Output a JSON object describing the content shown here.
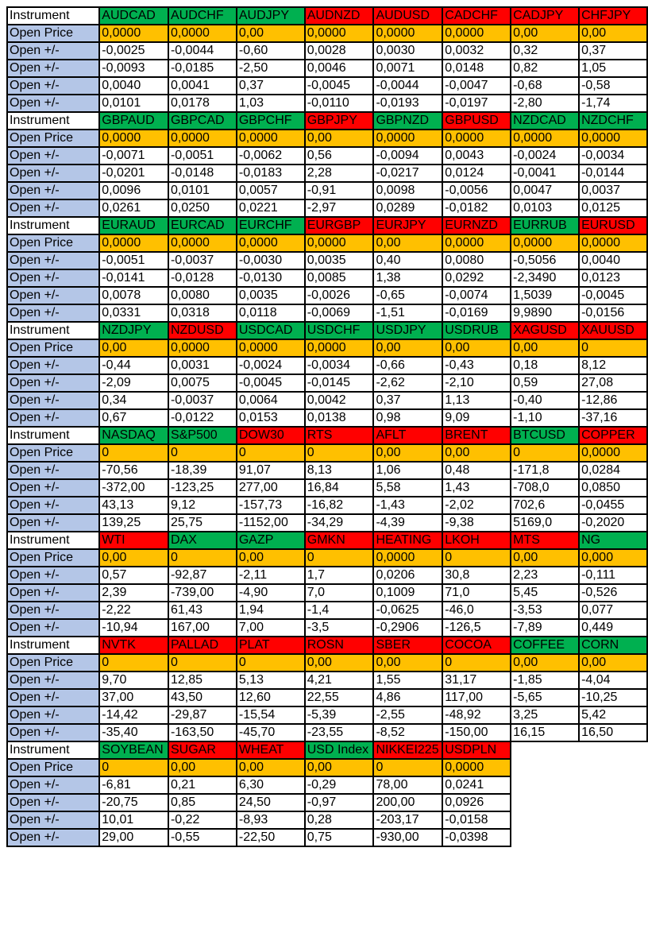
{
  "labels": {
    "instrument": "Instrument",
    "open_price": "Open Price",
    "open_change": "Open +/-"
  },
  "colors": {
    "green": "#00B050",
    "red": "#FF0000",
    "open_price": "#FFC000",
    "label": "#B4C6E7"
  },
  "blocks": [
    {
      "instruments": [
        [
          "AUDCAD",
          "g"
        ],
        [
          "AUDCHF",
          "g"
        ],
        [
          "AUDJPY",
          "g"
        ],
        [
          "AUDNZD",
          "r"
        ],
        [
          "AUDUSD",
          "r"
        ],
        [
          "CADCHF",
          "r"
        ],
        [
          "CADJPY",
          "r"
        ],
        [
          "CHFJPY",
          "r"
        ]
      ],
      "open_price": [
        "0,0000",
        "0,0000",
        "0,00",
        "0,0000",
        "0,0000",
        "0,0000",
        "0,00",
        "0,00"
      ],
      "rows": [
        [
          "-0,0025",
          "-0,0044",
          "-0,60",
          "0,0028",
          "0,0030",
          "0,0032",
          "0,32",
          "0,37"
        ],
        [
          "-0,0093",
          "-0,0185",
          "-2,50",
          "0,0046",
          "0,0071",
          "0,0148",
          "0,82",
          "1,05"
        ],
        [
          "0,0040",
          "0,0041",
          "0,37",
          "-0,0045",
          "-0,0044",
          "-0,0047",
          "-0,68",
          "-0,58"
        ],
        [
          "0,0101",
          "0,0178",
          "1,03",
          "-0,0110",
          "-0,0193",
          "-0,0197",
          "-2,80",
          "-1,74"
        ]
      ]
    },
    {
      "instruments": [
        [
          "GBPAUD",
          "g"
        ],
        [
          "GBPCAD",
          "g"
        ],
        [
          "GBPCHF",
          "g"
        ],
        [
          "GBPJPY",
          "r"
        ],
        [
          "GBPNZD",
          "g"
        ],
        [
          "GBPUSD",
          "r"
        ],
        [
          "NZDCAD",
          "g"
        ],
        [
          "NZDCHF",
          "g"
        ]
      ],
      "open_price": [
        "0,0000",
        "0,0000",
        "0,0000",
        "0,00",
        "0,0000",
        "0,0000",
        "0,0000",
        "0,0000"
      ],
      "rows": [
        [
          "-0,0071",
          "-0,0051",
          "-0,0062",
          "0,56",
          "-0,0094",
          "0,0043",
          "-0,0024",
          "-0,0034"
        ],
        [
          "-0,0201",
          "-0,0148",
          "-0,0183",
          "2,28",
          "-0,0217",
          "0,0124",
          "-0,0041",
          "-0,0144"
        ],
        [
          "0,0096",
          "0,0101",
          "0,0057",
          "-0,91",
          "0,0098",
          "-0,0056",
          "0,0047",
          "0,0037"
        ],
        [
          "0,0261",
          "0,0250",
          "0,0221",
          "-2,97",
          "0,0289",
          "-0,0182",
          "0,0103",
          "0,0125"
        ]
      ]
    },
    {
      "instruments": [
        [
          "EURAUD",
          "g"
        ],
        [
          "EURCAD",
          "g"
        ],
        [
          "EURCHF",
          "g"
        ],
        [
          "EURGBP",
          "r"
        ],
        [
          "EURJPY",
          "r"
        ],
        [
          "EURNZD",
          "r"
        ],
        [
          "EURRUB",
          "g"
        ],
        [
          "EURUSD",
          "r"
        ]
      ],
      "open_price": [
        "0,0000",
        "0,0000",
        "0,0000",
        "0,0000",
        "0,00",
        "0,0000",
        "0,0000",
        "0,0000"
      ],
      "rows": [
        [
          "-0,0051",
          "-0,0037",
          "-0,0030",
          "0,0035",
          "0,40",
          "0,0080",
          "-0,5056",
          "0,0040"
        ],
        [
          "-0,0141",
          "-0,0128",
          "-0,0130",
          "0,0085",
          "1,38",
          "0,0292",
          "-2,3490",
          "0,0123"
        ],
        [
          "0,0078",
          "0,0080",
          "0,0035",
          "-0,0026",
          "-0,65",
          "-0,0074",
          "1,5039",
          "-0,0045"
        ],
        [
          "0,0331",
          "0,0318",
          "0,0118",
          "-0,0069",
          "-1,51",
          "-0,0169",
          "9,9890",
          "-0,0156"
        ]
      ]
    },
    {
      "instruments": [
        [
          "NZDJPY",
          "g"
        ],
        [
          "NZDUSD",
          "r"
        ],
        [
          "USDCAD",
          "g"
        ],
        [
          "USDCHF",
          "g"
        ],
        [
          "USDJPY",
          "g"
        ],
        [
          "USDRUB",
          "g"
        ],
        [
          "XAGUSD",
          "r"
        ],
        [
          "XAUUSD",
          "r"
        ]
      ],
      "open_price": [
        "0,00",
        "0,0000",
        "0,0000",
        "0,0000",
        "0,00",
        "0,00",
        "0,00",
        "0"
      ],
      "rows": [
        [
          "-0,44",
          "0,0031",
          "-0,0024",
          "-0,0034",
          "-0,66",
          "-0,43",
          "0,18",
          "8,12"
        ],
        [
          "-2,09",
          "0,0075",
          "-0,0045",
          "-0,0145",
          "-2,62",
          "-2,10",
          "0,59",
          "27,08"
        ],
        [
          "0,34",
          "-0,0037",
          "0,0064",
          "0,0042",
          "0,37",
          "1,13",
          "-0,40",
          "-12,86"
        ],
        [
          "0,67",
          "-0,0122",
          "0,0153",
          "0,0138",
          "0,98",
          "9,09",
          "-1,10",
          "-37,16"
        ]
      ]
    },
    {
      "instruments": [
        [
          "NASDAQ",
          "g"
        ],
        [
          "S&P500",
          "g"
        ],
        [
          "DOW30",
          "r"
        ],
        [
          "RTS",
          "r"
        ],
        [
          "AFLT",
          "r"
        ],
        [
          "BRENT",
          "r"
        ],
        [
          "BTCUSD",
          "g"
        ],
        [
          "COPPER",
          "r"
        ]
      ],
      "open_price": [
        "0",
        "0",
        "0",
        "0",
        "0,00",
        "0,00",
        "0",
        "0,0000"
      ],
      "rows": [
        [
          "-70,56",
          "-18,39",
          "91,07",
          "8,13",
          "1,06",
          "0,48",
          "-171,8",
          "0,0284"
        ],
        [
          "-372,00",
          "-123,25",
          "277,00",
          "16,84",
          "5,58",
          "1,43",
          "-708,0",
          "0,0850"
        ],
        [
          "43,13",
          "9,12",
          "-157,73",
          "-16,82",
          "-1,43",
          "-2,02",
          "702,6",
          "-0,0455"
        ],
        [
          "139,25",
          "25,75",
          "-1152,00",
          "-34,29",
          "-4,39",
          "-9,38",
          "5169,0",
          "-0,2020"
        ]
      ]
    },
    {
      "instruments": [
        [
          "WTI",
          "r"
        ],
        [
          "DAX",
          "g"
        ],
        [
          "GAZP",
          "g"
        ],
        [
          "GMKN",
          "r"
        ],
        [
          "HEATING",
          "r"
        ],
        [
          "LKOH",
          "r"
        ],
        [
          "MTS",
          "r"
        ],
        [
          "NG",
          "g"
        ]
      ],
      "open_price": [
        "0,00",
        "0",
        "0,00",
        "0",
        "0,0000",
        "0",
        "0,00",
        "0,000"
      ],
      "rows": [
        [
          "0,57",
          "-92,87",
          "-2,11",
          "1,7",
          "0,0206",
          "30,8",
          "2,23",
          "-0,111"
        ],
        [
          "2,39",
          "-739,00",
          "-4,90",
          "7,0",
          "0,1009",
          "71,0",
          "5,45",
          "-0,526"
        ],
        [
          "-2,22",
          "61,43",
          "1,94",
          "-1,4",
          "-0,0625",
          "-46,0",
          "-3,53",
          "0,077"
        ],
        [
          "-10,94",
          "167,00",
          "7,00",
          "-3,5",
          "-0,2906",
          "-126,5",
          "-7,89",
          "0,449"
        ]
      ]
    },
    {
      "instruments": [
        [
          "NVTK",
          "r"
        ],
        [
          "PALLAD",
          "r"
        ],
        [
          "PLAT",
          "r"
        ],
        [
          "ROSN",
          "r"
        ],
        [
          "SBER",
          "r"
        ],
        [
          "COCOA",
          "r"
        ],
        [
          "COFFEE",
          "g"
        ],
        [
          "CORN",
          "g"
        ]
      ],
      "open_price": [
        "0",
        "0",
        "0",
        "0,00",
        "0,00",
        "0",
        "0,00",
        "0,00"
      ],
      "rows": [
        [
          "9,70",
          "12,85",
          "5,13",
          "4,21",
          "1,55",
          "31,17",
          "-1,85",
          "-4,04"
        ],
        [
          "37,00",
          "43,50",
          "12,60",
          "22,55",
          "4,86",
          "117,00",
          "-5,65",
          "-10,25"
        ],
        [
          "-14,42",
          "-29,87",
          "-15,54",
          "-5,39",
          "-2,55",
          "-48,92",
          "3,25",
          "5,42"
        ],
        [
          "-35,40",
          "-163,50",
          "-45,70",
          "-23,55",
          "-8,52",
          "-150,00",
          "16,15",
          "16,50"
        ]
      ]
    },
    {
      "instruments": [
        [
          "SOYBEAN",
          "g"
        ],
        [
          "SUGAR",
          "r"
        ],
        [
          "WHEAT",
          "r"
        ],
        [
          "USD Index",
          "g"
        ],
        [
          "NIKKEI225",
          "r"
        ],
        [
          "USDPLN",
          "r"
        ]
      ],
      "open_price": [
        "0",
        "0,00",
        "0,00",
        "0,00",
        "0",
        "0,0000"
      ],
      "rows": [
        [
          "-6,81",
          "0,21",
          "6,30",
          "-0,29",
          "78,00",
          "0,0241"
        ],
        [
          "-20,75",
          "0,85",
          "24,50",
          "-0,97",
          "200,00",
          "0,0926"
        ],
        [
          "10,01",
          "-0,22",
          "-8,93",
          "0,28",
          "-203,17",
          "-0,0158"
        ],
        [
          "29,00",
          "-0,55",
          "-22,50",
          "0,75",
          "-930,00",
          "-0,0398"
        ]
      ]
    }
  ]
}
